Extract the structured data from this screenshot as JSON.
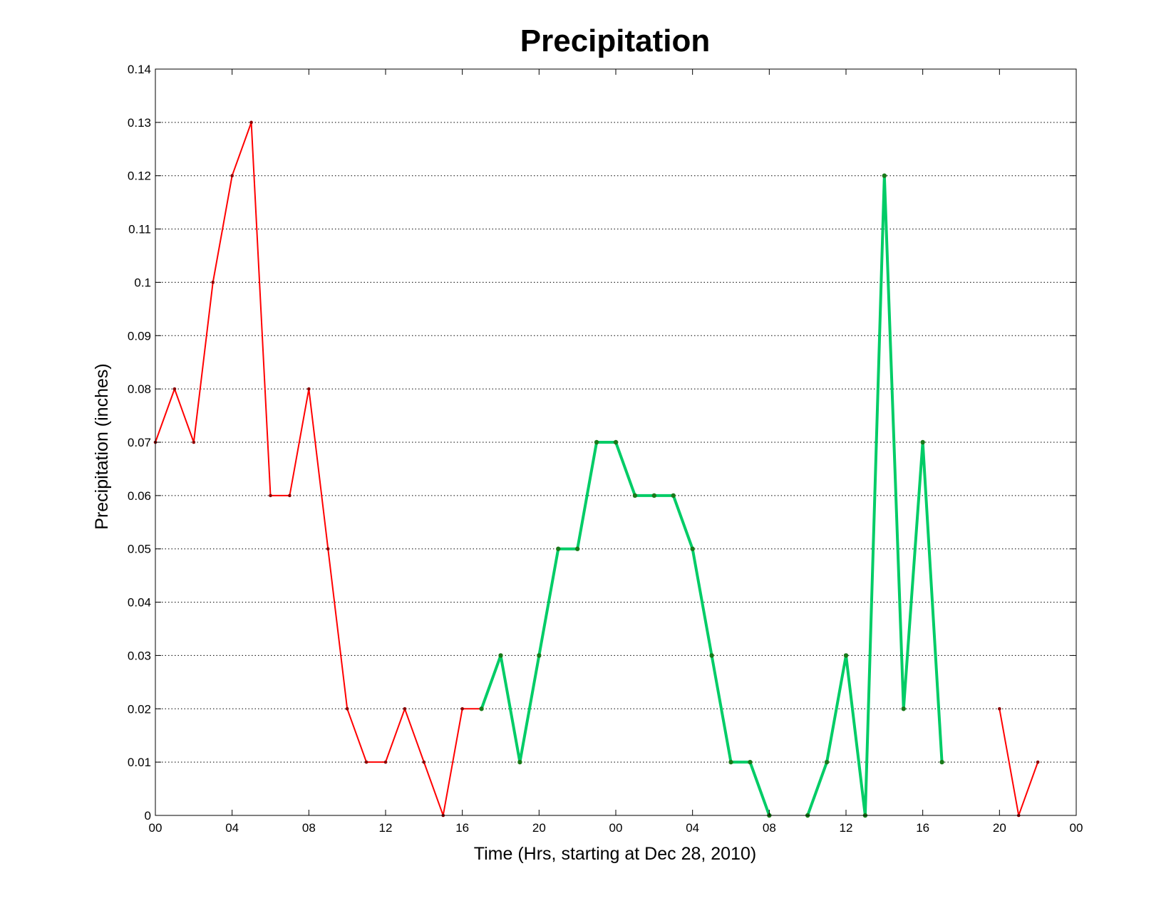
{
  "chart_data": {
    "type": "line",
    "title": "Precipitation",
    "xlabel": "Time (Hrs, starting at Dec 28, 2010)",
    "ylabel": "Precipitation (inches)",
    "xlim": [
      0,
      48
    ],
    "ylim": [
      0,
      0.14
    ],
    "grid": "y-dotted",
    "x_ticks": [
      0,
      4,
      8,
      12,
      16,
      20,
      24,
      28,
      32,
      36,
      40,
      44,
      48
    ],
    "x_tick_labels": [
      "00",
      "04",
      "08",
      "12",
      "16",
      "20",
      "00",
      "04",
      "08",
      "12",
      "16",
      "20",
      "00"
    ],
    "y_ticks": [
      0,
      0.01,
      0.02,
      0.03,
      0.04,
      0.05,
      0.06,
      0.07,
      0.08,
      0.09,
      0.1,
      0.11,
      0.12,
      0.13,
      0.14
    ],
    "y_tick_labels": [
      "0",
      "0.01",
      "0.02",
      "0.03",
      "0.04",
      "0.05",
      "0.06",
      "0.07",
      "0.08",
      "0.09",
      "0.1",
      "0.11",
      "0.12",
      "0.13",
      "0.14"
    ],
    "series": [
      {
        "color": "#ff0000",
        "marker_color": "#8b0000",
        "segments": [
          [
            [
              0,
              0.07
            ],
            [
              1,
              0.08
            ],
            [
              2,
              0.07
            ],
            [
              3,
              0.1
            ],
            [
              4,
              0.12
            ],
            [
              5,
              0.13
            ],
            [
              6,
              0.06
            ],
            [
              7,
              0.06
            ],
            [
              8,
              0.08
            ],
            [
              9,
              0.05
            ],
            [
              10,
              0.02
            ],
            [
              11,
              0.01
            ],
            [
              12,
              0.01
            ],
            [
              13,
              0.02
            ],
            [
              14,
              0.01
            ],
            [
              15,
              0.0
            ],
            [
              16,
              0.02
            ],
            [
              17,
              0.02
            ]
          ],
          [
            [
              44,
              0.02
            ],
            [
              45,
              0.0
            ],
            [
              46,
              0.01
            ]
          ]
        ]
      },
      {
        "color": "#00cc66",
        "marker_color": "#1a7a1a",
        "segments": [
          [
            [
              17,
              0.02
            ],
            [
              18,
              0.03
            ],
            [
              19,
              0.01
            ],
            [
              20,
              0.03
            ],
            [
              21,
              0.05
            ],
            [
              22,
              0.05
            ],
            [
              23,
              0.07
            ],
            [
              24,
              0.07
            ],
            [
              25,
              0.06
            ],
            [
              26,
              0.06
            ],
            [
              27,
              0.06
            ],
            [
              28,
              0.05
            ],
            [
              29,
              0.03
            ],
            [
              30,
              0.01
            ],
            [
              31,
              0.01
            ],
            [
              32,
              0.0
            ]
          ],
          [
            [
              34,
              0.0
            ],
            [
              35,
              0.01
            ],
            [
              36,
              0.03
            ],
            [
              37,
              0.0
            ],
            [
              38,
              0.12
            ],
            [
              39,
              0.02
            ],
            [
              40,
              0.07
            ],
            [
              41,
              0.01
            ]
          ]
        ]
      }
    ]
  }
}
